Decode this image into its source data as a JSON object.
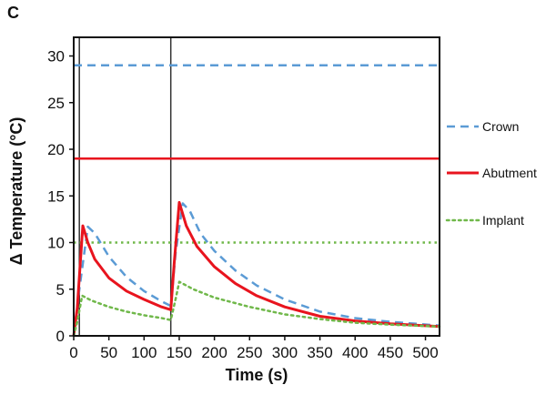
{
  "panel_label": "C",
  "colors": {
    "crown": "#5b9bd5",
    "abutment": "#e8141e",
    "implant": "#70b84a",
    "axis": "#111111"
  },
  "chart_data": {
    "type": "line",
    "title": "",
    "xlabel": "Time (s)",
    "ylabel": "Δ Temperature  (°C)",
    "xlim": [
      0,
      520
    ],
    "ylim": [
      0,
      32
    ],
    "xticks": [
      0,
      50,
      100,
      150,
      200,
      250,
      300,
      350,
      400,
      450,
      500
    ],
    "yticks": [
      0,
      5,
      10,
      15,
      20,
      25,
      30
    ],
    "vertical_markers": [
      8,
      138
    ],
    "legend_position": "right",
    "series": [
      {
        "name": "Crown",
        "style": "dashed",
        "color": "#5b9bd5",
        "threshold": 29,
        "points": [
          [
            0,
            0
          ],
          [
            8,
            5
          ],
          [
            20,
            11.7
          ],
          [
            30,
            11
          ],
          [
            50,
            8.5
          ],
          [
            75,
            6.3
          ],
          [
            100,
            4.8
          ],
          [
            125,
            3.7
          ],
          [
            138,
            3.2
          ],
          [
            145,
            9
          ],
          [
            155,
            14.2
          ],
          [
            165,
            13.4
          ],
          [
            180,
            11
          ],
          [
            200,
            9.1
          ],
          [
            230,
            7
          ],
          [
            260,
            5.4
          ],
          [
            300,
            3.9
          ],
          [
            350,
            2.6
          ],
          [
            400,
            1.9
          ],
          [
            450,
            1.5
          ],
          [
            520,
            1.1
          ]
        ]
      },
      {
        "name": "Abutment",
        "style": "solid",
        "color": "#e8141e",
        "threshold": 19,
        "points": [
          [
            0,
            0
          ],
          [
            5,
            3
          ],
          [
            13,
            11.8
          ],
          [
            20,
            10
          ],
          [
            30,
            8.2
          ],
          [
            50,
            6.2
          ],
          [
            75,
            4.8
          ],
          [
            100,
            3.9
          ],
          [
            125,
            3.1
          ],
          [
            138,
            2.8
          ],
          [
            143,
            8
          ],
          [
            150,
            14.3
          ],
          [
            160,
            11.8
          ],
          [
            175,
            9.6
          ],
          [
            200,
            7.4
          ],
          [
            230,
            5.6
          ],
          [
            260,
            4.3
          ],
          [
            300,
            3.1
          ],
          [
            350,
            2.1
          ],
          [
            400,
            1.6
          ],
          [
            450,
            1.3
          ],
          [
            520,
            1.0
          ]
        ]
      },
      {
        "name": "Implant",
        "style": "dotted",
        "color": "#70b84a",
        "threshold": 10,
        "points": [
          [
            0,
            0
          ],
          [
            5,
            1.5
          ],
          [
            12,
            4.3
          ],
          [
            25,
            3.8
          ],
          [
            50,
            3.1
          ],
          [
            75,
            2.6
          ],
          [
            100,
            2.2
          ],
          [
            125,
            1.9
          ],
          [
            138,
            1.7
          ],
          [
            145,
            4
          ],
          [
            150,
            5.8
          ],
          [
            170,
            5
          ],
          [
            200,
            4.1
          ],
          [
            250,
            3.1
          ],
          [
            300,
            2.3
          ],
          [
            350,
            1.8
          ],
          [
            400,
            1.4
          ],
          [
            450,
            1.2
          ],
          [
            520,
            1.0
          ]
        ]
      }
    ]
  }
}
